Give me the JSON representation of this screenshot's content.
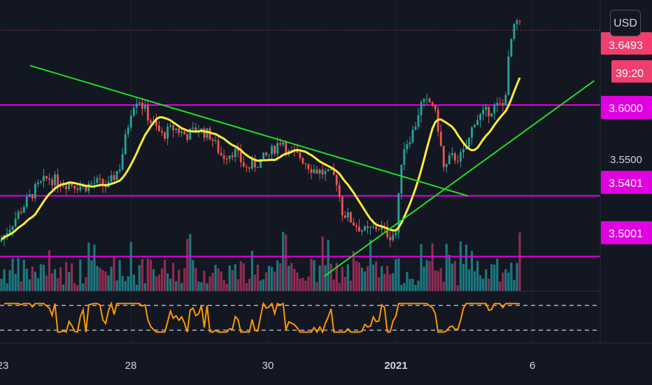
{
  "currency_button": "USD",
  "colors": {
    "background": "#131722",
    "grid": "#1e222d",
    "up": "#26a69a",
    "down": "#ef5350",
    "vol_up": "#1f8a8f",
    "vol_down": "#a8305c",
    "ma": "#ffeb3b",
    "osc": "#ff9800",
    "levels": "#e000e0",
    "trend": "#22dd22",
    "price_tag": "#f23e6e"
  },
  "chart_data": {
    "type": "candlestick",
    "x_axis_labels": [
      "23",
      "28",
      "30",
      "2021",
      "6"
    ],
    "price_axis": {
      "min": 3.48,
      "max": 3.66,
      "hidden_label": "3.5500"
    },
    "current_price": "3.6493",
    "countdown": "39:20",
    "horizontal_levels": [
      "3.6000",
      "3.5401",
      "3.5001"
    ],
    "oscillator_levels": [
      70,
      30
    ],
    "trendlines": [
      {
        "name": "descending",
        "from": [
          0.05,
          3.626
        ],
        "to": [
          0.78,
          3.54
        ]
      },
      {
        "name": "ascending",
        "from": [
          0.54,
          3.487
        ],
        "to": [
          0.99,
          3.616
        ]
      }
    ],
    "price_anchors": [
      [
        0.0,
        3.51
      ],
      [
        0.02,
        3.522
      ],
      [
        0.04,
        3.534
      ],
      [
        0.06,
        3.545
      ],
      [
        0.08,
        3.552
      ],
      [
        0.1,
        3.549
      ],
      [
        0.12,
        3.548
      ],
      [
        0.14,
        3.546
      ],
      [
        0.16,
        3.549
      ],
      [
        0.18,
        3.546
      ],
      [
        0.2,
        3.56
      ],
      [
        0.22,
        3.6
      ],
      [
        0.23,
        3.605
      ],
      [
        0.25,
        3.59
      ],
      [
        0.27,
        3.58
      ],
      [
        0.29,
        3.585
      ],
      [
        0.31,
        3.58
      ],
      [
        0.33,
        3.584
      ],
      [
        0.35,
        3.58
      ],
      [
        0.37,
        3.566
      ],
      [
        0.39,
        3.57
      ],
      [
        0.41,
        3.558
      ],
      [
        0.43,
        3.562
      ],
      [
        0.45,
        3.568
      ],
      [
        0.47,
        3.578
      ],
      [
        0.48,
        3.568
      ],
      [
        0.5,
        3.566
      ],
      [
        0.52,
        3.558
      ],
      [
        0.54,
        3.555
      ],
      [
        0.56,
        3.552
      ],
      [
        0.57,
        3.53
      ],
      [
        0.59,
        3.522
      ],
      [
        0.61,
        3.516
      ],
      [
        0.63,
        3.52
      ],
      [
        0.65,
        3.514
      ],
      [
        0.66,
        3.516
      ],
      [
        0.67,
        3.57
      ],
      [
        0.69,
        3.584
      ],
      [
        0.7,
        3.6
      ],
      [
        0.72,
        3.602
      ],
      [
        0.73,
        3.585
      ],
      [
        0.74,
        3.556
      ],
      [
        0.75,
        3.565
      ],
      [
        0.77,
        3.566
      ],
      [
        0.78,
        3.575
      ],
      [
        0.79,
        3.59
      ],
      [
        0.81,
        3.595
      ],
      [
        0.82,
        3.598
      ],
      [
        0.84,
        3.6
      ],
      [
        0.85,
        3.64
      ],
      [
        0.86,
        3.655
      ],
      [
        0.87,
        3.649
      ]
    ]
  }
}
